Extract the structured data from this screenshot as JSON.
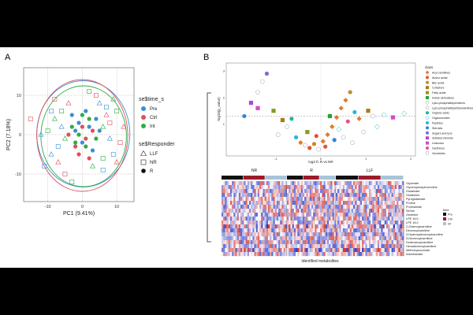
{
  "panels": [
    {
      "letter": "A"
    },
    {
      "letter": "B"
    }
  ],
  "chart_data": [
    {
      "panel": "A",
      "type": "scatter",
      "xlabel": "PC1 (9.41%)",
      "ylabel": "PC2 (7.18%)",
      "xlim": [
        -17,
        15
      ],
      "ylim": [
        -17,
        17
      ],
      "xticks": [
        -10,
        0,
        10
      ],
      "yticks": [
        -10,
        0,
        10
      ],
      "tick_labels_x": [
        "-10",
        "0",
        "10"
      ],
      "tick_labels_y": [
        "-10",
        "0",
        "10"
      ],
      "legend_color_title": "se$time_s",
      "legend_shape_title": "se$Responder",
      "time_groups": [
        {
          "name": "Pre",
          "color": "#3a8fd6"
        },
        {
          "name": "Ctrl",
          "color": "#e0505a"
        },
        {
          "name": "Int",
          "color": "#2fae3f"
        }
      ],
      "responder_groups": [
        {
          "name": "LLF",
          "shape": "triangle-open"
        },
        {
          "name": "NR",
          "shape": "square-open"
        },
        {
          "name": "R",
          "shape": "circle-filled"
        }
      ],
      "ellipses": [
        {
          "group": "Pre",
          "center": [
            0.3,
            0.2
          ],
          "rx": 13.5,
          "ry": 13.5,
          "color": "#3a8fd6"
        },
        {
          "group": "Ctrl",
          "center": [
            0.0,
            -0.2
          ],
          "rx": 13.2,
          "ry": 14.2,
          "color": "#e0505a"
        },
        {
          "group": "Int",
          "center": [
            0.4,
            -0.4
          ],
          "rx": 12.4,
          "ry": 12.8,
          "color": "#2fae3f"
        }
      ],
      "points": [
        {
          "x": -3,
          "y": 5,
          "g": "Pre",
          "r": "R"
        },
        {
          "x": -1,
          "y": 3,
          "g": "Pre",
          "r": "R"
        },
        {
          "x": 1,
          "y": 6,
          "g": "Pre",
          "r": "R"
        },
        {
          "x": 2,
          "y": 2,
          "g": "Pre",
          "r": "R"
        },
        {
          "x": 4,
          "y": 4,
          "g": "Pre",
          "r": "R"
        },
        {
          "x": 0,
          "y": -2,
          "g": "Pre",
          "r": "R"
        },
        {
          "x": 3,
          "y": -4,
          "g": "Pre",
          "r": "R"
        },
        {
          "x": 5,
          "y": 1,
          "g": "Pre",
          "r": "R"
        },
        {
          "x": -2,
          "y": 1,
          "g": "Pre",
          "r": "R"
        },
        {
          "x": -4,
          "y": 0,
          "g": "Ctrl",
          "r": "R"
        },
        {
          "x": -2,
          "y": -3,
          "g": "Ctrl",
          "r": "R"
        },
        {
          "x": 1,
          "y": -1,
          "g": "Ctrl",
          "r": "R"
        },
        {
          "x": 3,
          "y": 1,
          "g": "Ctrl",
          "r": "R"
        },
        {
          "x": 0,
          "y": 2,
          "g": "Ctrl",
          "r": "R"
        },
        {
          "x": -1,
          "y": -5,
          "g": "Ctrl",
          "r": "R"
        },
        {
          "x": 2,
          "y": -6,
          "g": "Ctrl",
          "r": "R"
        },
        {
          "x": -3,
          "y": 2,
          "g": "Int",
          "r": "R"
        },
        {
          "x": -1,
          "y": 0,
          "g": "Int",
          "r": "R"
        },
        {
          "x": 1,
          "y": -3,
          "g": "Int",
          "r": "R"
        },
        {
          "x": 2,
          "y": 4,
          "g": "Int",
          "r": "R"
        },
        {
          "x": 4,
          "y": -1,
          "g": "Int",
          "r": "R"
        },
        {
          "x": 0,
          "y": 5,
          "g": "Int",
          "r": "R"
        },
        {
          "x": -2,
          "y": -2,
          "g": "Int",
          "r": "R"
        },
        {
          "x": -9,
          "y": 6,
          "g": "Pre",
          "r": "NR"
        },
        {
          "x": -7,
          "y": -3,
          "g": "Pre",
          "r": "NR"
        },
        {
          "x": 7,
          "y": 7,
          "g": "Pre",
          "r": "NR"
        },
        {
          "x": 9,
          "y": -5,
          "g": "Pre",
          "r": "NR"
        },
        {
          "x": -11,
          "y": -8,
          "g": "Pre",
          "r": "NR"
        },
        {
          "x": 6,
          "y": -9,
          "g": "Pre",
          "r": "NR"
        },
        {
          "x": -8,
          "y": 9,
          "g": "Ctrl",
          "r": "NR"
        },
        {
          "x": -5,
          "y": -10,
          "g": "Ctrl",
          "r": "NR"
        },
        {
          "x": 8,
          "y": 3,
          "g": "Ctrl",
          "r": "NR"
        },
        {
          "x": 11,
          "y": -2,
          "g": "Ctrl",
          "r": "NR"
        },
        {
          "x": -15,
          "y": 4,
          "g": "Ctrl",
          "r": "NR"
        },
        {
          "x": 4,
          "y": 10,
          "g": "Ctrl",
          "r": "NR"
        },
        {
          "x": -10,
          "y": 1,
          "g": "Int",
          "r": "NR"
        },
        {
          "x": -6,
          "y": 6,
          "g": "Int",
          "r": "NR"
        },
        {
          "x": 6,
          "y": -6,
          "g": "Int",
          "r": "NR"
        },
        {
          "x": 10,
          "y": 6,
          "g": "Int",
          "r": "NR"
        },
        {
          "x": -3,
          "y": -12,
          "g": "Int",
          "r": "NR"
        },
        {
          "x": 2,
          "y": 11,
          "g": "Int",
          "r": "NR"
        },
        {
          "x": -6,
          "y": 2,
          "g": "Pre",
          "r": "LLF"
        },
        {
          "x": 8,
          "y": -1,
          "g": "Pre",
          "r": "LLF"
        },
        {
          "x": -9,
          "y": -5,
          "g": "Pre",
          "r": "LLF"
        },
        {
          "x": 5,
          "y": 8,
          "g": "Pre",
          "r": "LLF"
        },
        {
          "x": -12,
          "y": 0,
          "g": "Pre",
          "r": "LLF"
        },
        {
          "x": -4,
          "y": 8,
          "g": "Ctrl",
          "r": "LLF"
        },
        {
          "x": 7,
          "y": 5,
          "g": "Ctrl",
          "r": "LLF"
        },
        {
          "x": -7,
          "y": -7,
          "g": "Ctrl",
          "r": "LLF"
        },
        {
          "x": 10,
          "y": -7,
          "g": "Ctrl",
          "r": "LLF"
        },
        {
          "x": 12,
          "y": 2,
          "g": "Ctrl",
          "r": "LLF"
        },
        {
          "x": -5,
          "y": -1,
          "g": "Int",
          "r": "LLF"
        },
        {
          "x": 6,
          "y": 2,
          "g": "Int",
          "r": "LLF"
        },
        {
          "x": -8,
          "y": 4,
          "g": "Int",
          "r": "LLF"
        },
        {
          "x": 3,
          "y": -8,
          "g": "Int",
          "r": "LLF"
        },
        {
          "x": 9,
          "y": 9,
          "g": "Int",
          "r": "LLF"
        }
      ]
    },
    {
      "panel": "B-top",
      "type": "scatter",
      "xlabel": "log2 fc R vs NR",
      "ylabel": "-log10(p_value)",
      "xlim": [
        -2.1,
        2.1
      ],
      "ylim": [
        -0.2,
        3.3
      ],
      "xticks": [
        -1,
        0,
        1,
        2
      ],
      "yticks": [
        1,
        2,
        3
      ],
      "tick_labels_x": [
        "-1",
        "0",
        "1",
        "2"
      ],
      "tick_labels_y": [
        "1",
        "2",
        "3"
      ],
      "threshold_y": 1.3,
      "legend_title": "class",
      "classes": [
        {
          "name": "Acyl carnitines",
          "color": "#e07a2a",
          "shape": "diamond"
        },
        {
          "name": "Amino acids",
          "color": "#e6542b",
          "shape": "circle"
        },
        {
          "name": "Bile acids",
          "color": "#c78a24",
          "shape": "circle"
        },
        {
          "name": "Cofactors",
          "color": "#a87c12",
          "shape": "square"
        },
        {
          "name": "Fatty acids",
          "color": "#8a9a1a",
          "shape": "square"
        },
        {
          "name": "Indole derivatives",
          "color": "#2aa033",
          "shape": "square"
        },
        {
          "name": "Lyso-phosphatidylcholines",
          "color": "#9aa0a6",
          "shape": "circle-open"
        },
        {
          "name": "Lyso-phosphatidylethanolamines",
          "color": "#9aa0a6",
          "shape": "circle-open"
        },
        {
          "name": "Organic acids",
          "color": "#1fb59a",
          "shape": "circle"
        },
        {
          "name": "Organooxides",
          "color": "#17b7c9",
          "shape": "diamond-open"
        },
        {
          "name": "Peptides",
          "color": "#27b8d8",
          "shape": "circle"
        },
        {
          "name": "Steroids",
          "color": "#2f86d8",
          "shape": "circle"
        },
        {
          "name": "Sugars and lyxs",
          "color": "#7a6ad8",
          "shape": "circle"
        },
        {
          "name": "Sulfated steroids",
          "color": "#b046d6",
          "shape": "square"
        },
        {
          "name": "Unknown",
          "color": "#d04cc8",
          "shape": "square"
        },
        {
          "name": "Xanthines",
          "color": "#e0509a",
          "shape": "circle"
        },
        {
          "name": "Xenobiotic",
          "color": "#9aa0a6",
          "shape": "circle-open"
        }
      ],
      "points": [
        {
          "x": -1.7,
          "y": 1.3,
          "c": "Steroids"
        },
        {
          "x": -1.55,
          "y": 1.8,
          "c": "Sulfated steroids"
        },
        {
          "x": -1.4,
          "y": 2.2,
          "c": "Lyso-phosphatidylcholines"
        },
        {
          "x": -1.4,
          "y": 1.6,
          "c": "Unknown"
        },
        {
          "x": -1.3,
          "y": 2.6,
          "c": "Xenobiotic"
        },
        {
          "x": -1.2,
          "y": 2.9,
          "c": "Sugars and lyxs"
        },
        {
          "x": -1.05,
          "y": 1.5,
          "c": "Fatty acids"
        },
        {
          "x": -0.95,
          "y": 0.6,
          "c": "Xenobiotic"
        },
        {
          "x": -0.85,
          "y": 1.15,
          "c": "Cofactors"
        },
        {
          "x": -0.75,
          "y": 0.9,
          "c": "Lyso-phosphatidylethanolamines"
        },
        {
          "x": -0.65,
          "y": 1.2,
          "c": "Organic acids"
        },
        {
          "x": -0.55,
          "y": 0.5,
          "c": "Peptides"
        },
        {
          "x": -0.45,
          "y": 0.3,
          "c": "Acyl carnitines"
        },
        {
          "x": -0.35,
          "y": 0.2,
          "c": "Xenobiotic"
        },
        {
          "x": -0.25,
          "y": 0.1,
          "c": "Amino acids"
        },
        {
          "x": -0.15,
          "y": 0.25,
          "c": "Bile acids"
        },
        {
          "x": -0.05,
          "y": 0.05,
          "c": "Lyso-phosphatidylcholines"
        },
        {
          "x": 0.05,
          "y": 0.35,
          "c": "Acyl carnitines"
        },
        {
          "x": 0.15,
          "y": 0.6,
          "c": "Acyl carnitines"
        },
        {
          "x": 0.25,
          "y": 0.9,
          "c": "Acyl carnitines"
        },
        {
          "x": 0.35,
          "y": 1.25,
          "c": "Acyl carnitines"
        },
        {
          "x": 0.45,
          "y": 1.6,
          "c": "Acyl carnitines"
        },
        {
          "x": 0.55,
          "y": 1.9,
          "c": "Acyl carnitines"
        },
        {
          "x": 0.65,
          "y": 2.2,
          "c": "Bile acids"
        },
        {
          "x": 0.2,
          "y": 1.3,
          "c": "Indole derivatives"
        },
        {
          "x": 0.3,
          "y": 0.4,
          "c": "Steroids"
        },
        {
          "x": 0.4,
          "y": 0.8,
          "c": "Organooxides"
        },
        {
          "x": 0.5,
          "y": 0.5,
          "c": "Xenobiotic"
        },
        {
          "x": 0.6,
          "y": 1.1,
          "c": "Xanthines"
        },
        {
          "x": 0.75,
          "y": 1.45,
          "c": "Peptides"
        },
        {
          "x": 0.85,
          "y": 1.2,
          "c": "Acyl carnitines"
        },
        {
          "x": 0.95,
          "y": 0.7,
          "c": "Lyso-phosphatidylethanolamines"
        },
        {
          "x": 1.05,
          "y": 1.5,
          "c": "Cofactors"
        },
        {
          "x": 1.15,
          "y": 1.3,
          "c": "Xenobiotic"
        },
        {
          "x": 1.25,
          "y": 0.9,
          "c": "Organooxides"
        },
        {
          "x": 1.4,
          "y": 1.35,
          "c": "Organooxides"
        },
        {
          "x": 1.6,
          "y": 1.25,
          "c": "Unknown"
        },
        {
          "x": 1.85,
          "y": 1.4,
          "c": "Organooxides"
        },
        {
          "x": -0.1,
          "y": 0.55,
          "c": "Amino acids"
        },
        {
          "x": 0.1,
          "y": 0.15,
          "c": "Amino acids"
        },
        {
          "x": -0.3,
          "y": 0.7,
          "c": "Fatty acids"
        },
        {
          "x": 0.7,
          "y": 0.3,
          "c": "Lyso-phosphatidylcholines"
        }
      ]
    },
    {
      "panel": "B-bottom",
      "type": "heatmap",
      "xlabel": "Identified metabolites",
      "col_groups": [
        "NR",
        "R",
        "LLF"
      ],
      "time_legend_title": "time",
      "time_legend": [
        {
          "name": "Pre",
          "color": "#111111"
        },
        {
          "name": "Ctrl",
          "color": "#9b1b2c"
        },
        {
          "name": "Int",
          "color": "#a8c4d8"
        }
      ],
      "time_blocks_per_group": [
        [
          "Pre",
          "Ctrl",
          "Int"
        ],
        [
          "Pre",
          "Ctrl",
          "Int"
        ],
        [
          "Pre",
          "Ctrl",
          "Int"
        ]
      ],
      "row_labels": [
        "Glycerate",
        "Glycerophosphocholine",
        "Glutamate",
        "Glutamine",
        "Pyroglutamate",
        "Proline",
        "Prolinamide",
        "Serine",
        "Ornithine",
        "LPE 16:0",
        "LPE 18:2",
        "2-Octenoylcarnitine",
        "Decenoylcarnitine",
        "3-Hydroxydecanoylcarnitine",
        "9-Decenoylcarnitine",
        "Dodecanoylcarnitine",
        "Hexadecenoylcarnitine",
        "Methoxysuccinate",
        "Indolelactate"
      ],
      "scale_colors": {
        "low": "#2b3cc9",
        "mid": "#ffffff",
        "high": "#d2322d"
      }
    }
  ]
}
